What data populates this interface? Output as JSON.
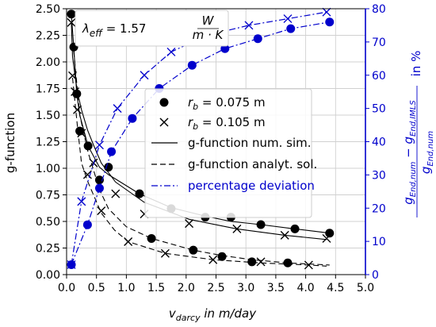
{
  "chart_data": {
    "type": "scatter",
    "title": "",
    "xlabel": "v",
    "xlabel_sub": "darcy",
    "xlabel_rest": " in m/day",
    "ylabel": "g-function",
    "y2label_num_a": "g",
    "y2label_num_a_sub": "End,num",
    "y2label_num_minus": " − ",
    "y2label_num_b": "g",
    "y2label_num_b_sub": "End,IMLS",
    "y2label_den": "g",
    "y2label_den_sub": "End,num",
    "y2label_unit": "in %",
    "xlim": [
      0.0,
      5.0
    ],
    "ylim": [
      0.0,
      2.5
    ],
    "y2lim": [
      0,
      80
    ],
    "xticks": [
      "0.0",
      "0.5",
      "1.0",
      "1.5",
      "2.0",
      "2.5",
      "3.0",
      "3.5",
      "4.0",
      "4.5",
      "5.0"
    ],
    "yticks": [
      "0.00",
      "0.25",
      "0.50",
      "0.75",
      "1.00",
      "1.25",
      "1.50",
      "1.75",
      "2.00",
      "2.25",
      "2.50"
    ],
    "y2ticks": [
      "0",
      "10",
      "20",
      "30",
      "40",
      "50",
      "60",
      "70",
      "80"
    ],
    "grid": true,
    "legend_position": "center-right",
    "annotation": {
      "lambda": "λ",
      "lambda_sub": "eff",
      "eq": " = 1.57 ",
      "num": "W",
      "den": "m · K"
    },
    "legend": [
      {
        "label_math": "r",
        "label_sub": "b",
        "label_rest": " = 0.075 m",
        "marker": "circle"
      },
      {
        "label_math": "r",
        "label_sub": "b",
        "label_rest": " = 0.105 m",
        "marker": "x"
      },
      {
        "label": "g-function num. sim.",
        "line": "solid"
      },
      {
        "label": "g-function analyt. sol.",
        "line": "dashed"
      },
      {
        "label": "percentage deviation",
        "line": "dashdot",
        "color": "#0000cc"
      }
    ],
    "series": [
      {
        "name": "rb = 0.075 m (g-function)",
        "axis": "left",
        "marker": "circle",
        "color": "#000000",
        "x": [
          0.08,
          0.12,
          0.17,
          0.22,
          0.36,
          0.55,
          0.7,
          1.22,
          1.42,
          1.75,
          2.12,
          2.32,
          2.6,
          2.75,
          3.1,
          3.25,
          3.7,
          3.82,
          4.4
        ],
        "y": [
          2.45,
          2.14,
          1.7,
          1.35,
          1.21,
          0.89,
          1.01,
          0.76,
          0.34,
          0.62,
          0.23,
          0.54,
          0.17,
          0.54,
          0.12,
          0.47,
          0.11,
          0.43,
          0.39
        ]
      },
      {
        "name": "rb = 0.105 m (g-function)",
        "axis": "left",
        "marker": "x",
        "color": "#000000",
        "x": [
          0.08,
          0.1,
          0.14,
          0.18,
          0.25,
          0.35,
          0.45,
          0.58,
          0.82,
          1.03,
          1.3,
          1.65,
          2.05,
          2.45,
          2.85,
          3.25,
          3.65,
          4.05,
          4.35
        ],
        "y": [
          2.37,
          1.87,
          1.72,
          1.55,
          1.33,
          0.94,
          1.05,
          0.6,
          0.76,
          0.31,
          0.57,
          0.2,
          0.48,
          0.14,
          0.43,
          0.12,
          0.37,
          0.09,
          0.34
        ]
      },
      {
        "name": "g-function num. sim. (rb = 0.075 m)",
        "axis": "left",
        "line": "solid",
        "color": "#000000",
        "x": [
          0.08,
          0.12,
          0.17,
          0.22,
          0.36,
          0.55,
          0.7,
          1.22,
          1.75,
          2.32,
          2.75,
          3.25,
          3.82,
          4.4
        ],
        "y": [
          2.45,
          2.14,
          1.7,
          1.5,
          1.21,
          1.01,
          0.94,
          0.76,
          0.63,
          0.55,
          0.5,
          0.47,
          0.43,
          0.39
        ]
      },
      {
        "name": "g-function num. sim. (rb = 0.105 m)",
        "axis": "left",
        "line": "solid",
        "color": "#000000",
        "x": [
          0.08,
          0.1,
          0.14,
          0.18,
          0.25,
          0.35,
          0.45,
          0.58,
          0.82,
          1.3,
          2.05,
          2.85,
          3.65,
          4.35
        ],
        "y": [
          2.37,
          2.05,
          1.87,
          1.72,
          1.55,
          1.36,
          1.22,
          1.05,
          0.87,
          0.68,
          0.52,
          0.43,
          0.37,
          0.33
        ]
      },
      {
        "name": "g-function analyt. sol. (rb = 0.075 m)",
        "axis": "left",
        "line": "dashed",
        "color": "#000000",
        "x": [
          0.12,
          0.22,
          0.36,
          0.55,
          0.7,
          1.0,
          1.42,
          2.12,
          2.6,
          3.1,
          3.7,
          4.4
        ],
        "y": [
          2.1,
          1.5,
          1.15,
          0.8,
          0.62,
          0.45,
          0.34,
          0.23,
          0.18,
          0.14,
          0.11,
          0.09
        ]
      },
      {
        "name": "g-function analyt. sol. (rb = 0.105 m)",
        "axis": "left",
        "line": "dashed",
        "color": "#000000",
        "x": [
          0.1,
          0.18,
          0.25,
          0.35,
          0.45,
          0.58,
          0.8,
          1.03,
          1.65,
          2.45,
          3.25,
          4.05,
          4.35
        ],
        "y": [
          1.85,
          1.4,
          1.05,
          0.88,
          0.75,
          0.58,
          0.42,
          0.31,
          0.2,
          0.14,
          0.11,
          0.09,
          0.08
        ]
      },
      {
        "name": "percentage deviation (rb = 0.075 m)",
        "axis": "right",
        "marker": "circle",
        "line": "dashdot",
        "color": "#0000cc",
        "x": [
          0.08,
          0.35,
          0.55,
          0.75,
          1.1,
          1.55,
          2.1,
          2.65,
          3.2,
          3.75,
          4.4
        ],
        "y": [
          3,
          15,
          26,
          37,
          47,
          56,
          63,
          68,
          71,
          74,
          76
        ]
      },
      {
        "name": "percentage deviation (rb = 0.105 m)",
        "axis": "right",
        "marker": "x",
        "line": "dashdot",
        "color": "#0000cc",
        "x": [
          0.08,
          0.25,
          0.55,
          0.85,
          1.3,
          1.75,
          2.35,
          3.05,
          3.7,
          4.35
        ],
        "y": [
          3,
          22,
          39,
          50,
          60,
          67,
          72,
          75,
          77,
          79
        ]
      }
    ]
  }
}
